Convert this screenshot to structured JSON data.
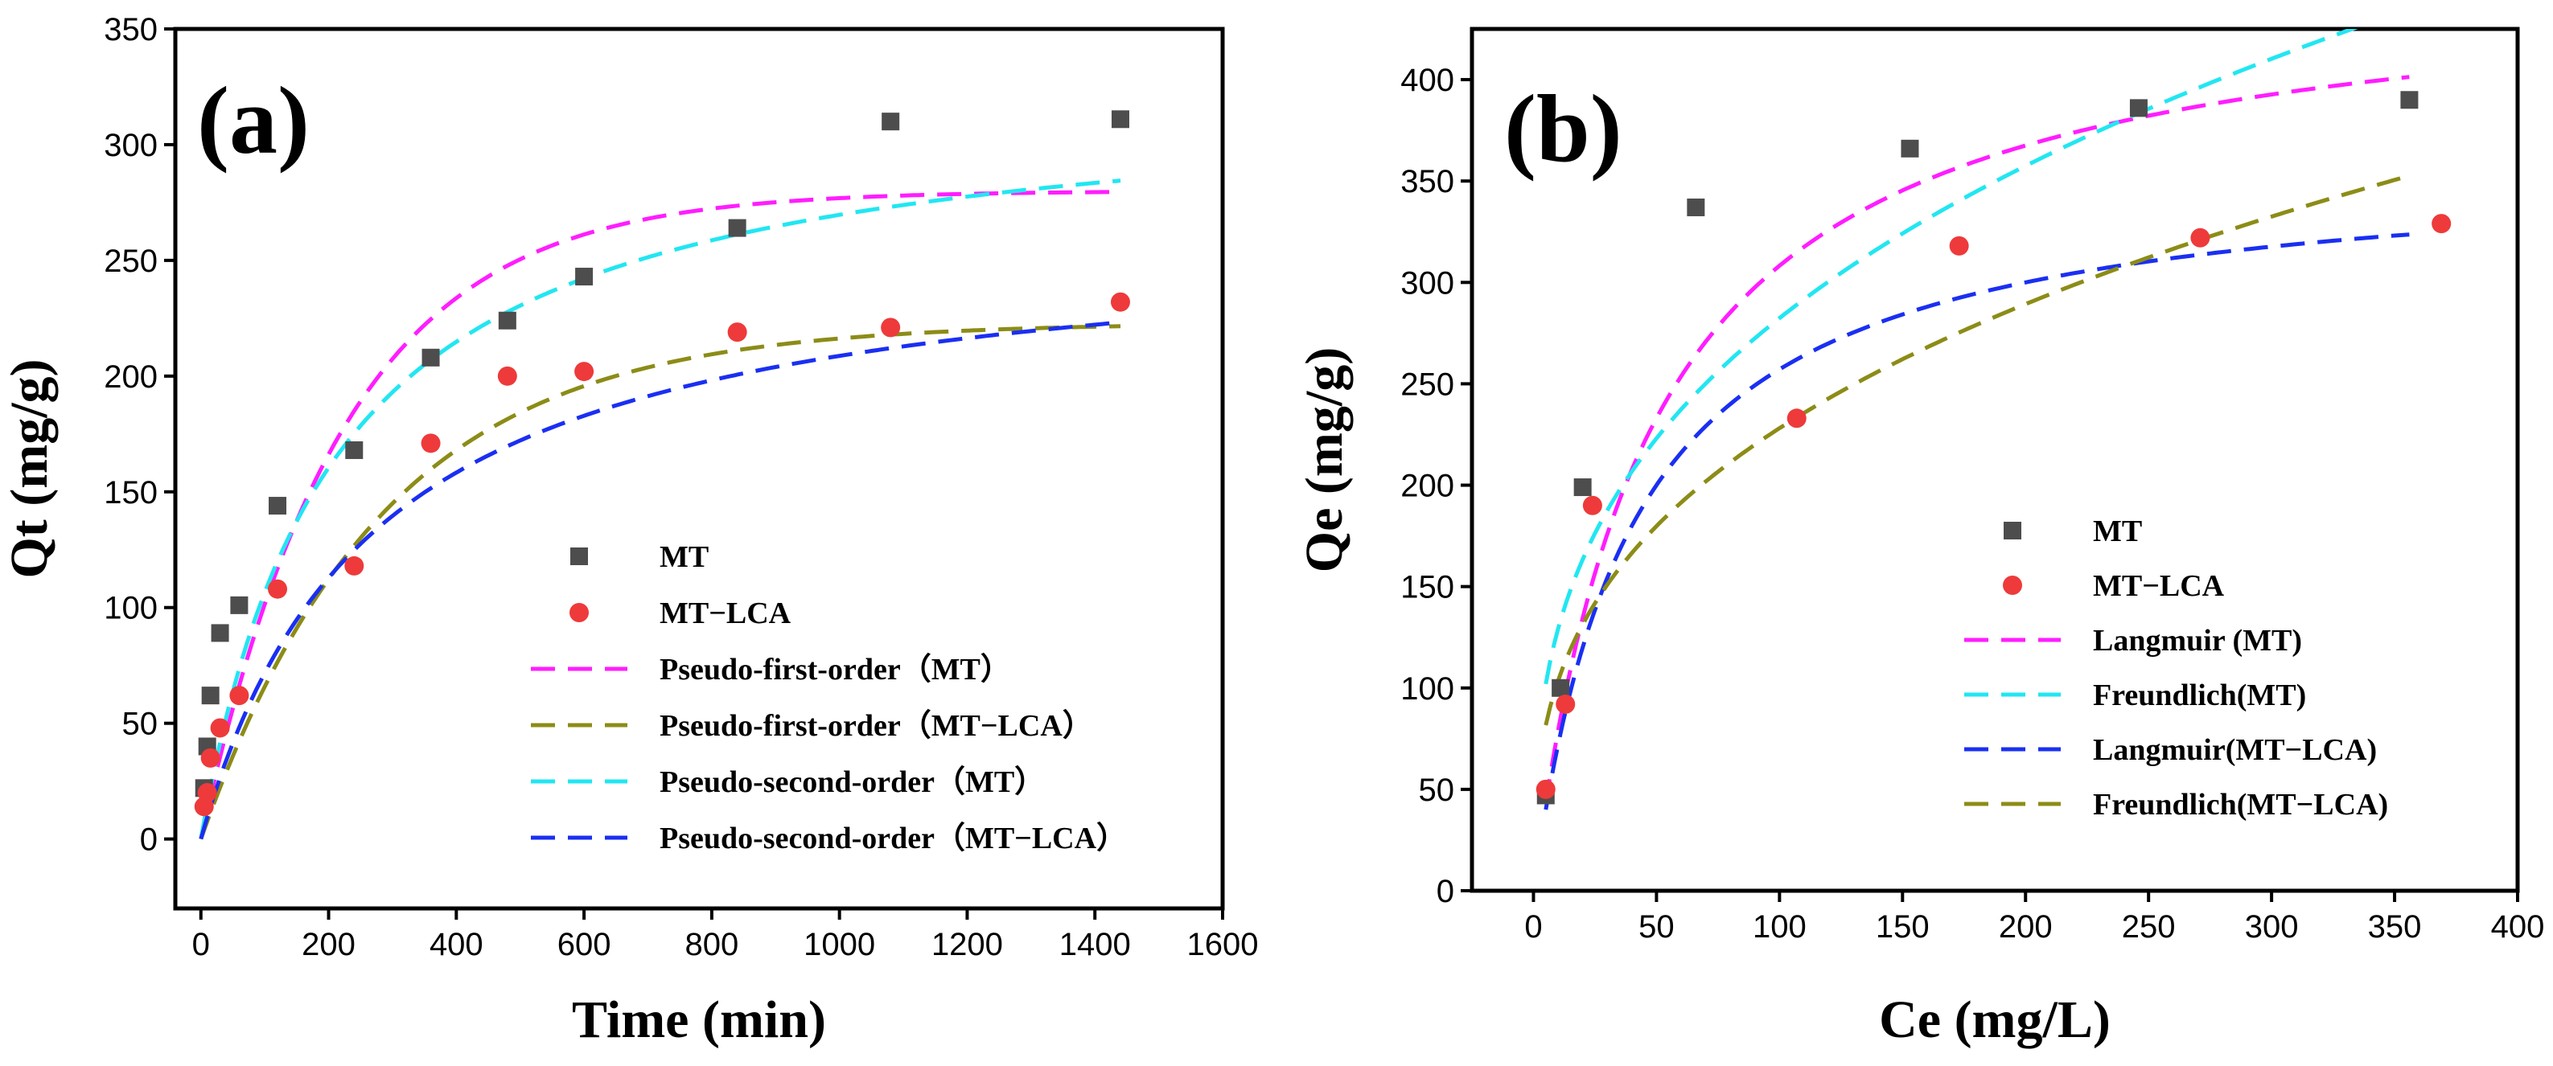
{
  "chart_data": [
    {
      "type": "scatter",
      "panel_label": "(a)",
      "xlabel": "Time (min)",
      "ylabel": "Qt (mg/g)",
      "xlim": [
        -40,
        1600
      ],
      "ylim": [
        -30,
        350
      ],
      "xticks": [
        0,
        200,
        400,
        600,
        800,
        1000,
        1200,
        1400,
        1600
      ],
      "yticks": [
        0,
        50,
        100,
        150,
        200,
        250,
        300,
        350
      ],
      "legend_position": "center-right",
      "series": [
        {
          "name": "MT",
          "kind": "marker",
          "marker": "square",
          "color": "#4d4d4d",
          "x": [
            5,
            10,
            15,
            30,
            60,
            120,
            240,
            360,
            480,
            600,
            840,
            1080,
            1440
          ],
          "y": [
            22,
            40,
            62,
            89,
            101,
            144,
            168,
            208,
            224,
            243,
            264,
            310,
            311
          ]
        },
        {
          "name": "MT−LCA",
          "kind": "marker",
          "marker": "circle",
          "color": "#ee3a3a",
          "x": [
            5,
            10,
            15,
            30,
            60,
            120,
            240,
            360,
            480,
            600,
            840,
            1080,
            1440
          ],
          "y": [
            14,
            20,
            35,
            48,
            62,
            108,
            118,
            171,
            200,
            202,
            219,
            221,
            232
          ]
        },
        {
          "name": "Pseudo-first-order（MT）",
          "kind": "line",
          "color": "#ff1dff",
          "model": "pfo",
          "params": {
            "qe": 280,
            "k": 0.0045
          },
          "xrange": [
            0,
            1440
          ]
        },
        {
          "name": "Pseudo-first-order（MT−LCA）",
          "kind": "line",
          "color": "#8c8c17",
          "model": "pfo",
          "params": {
            "qe": 223,
            "k": 0.0035
          },
          "xrange": [
            0,
            1440
          ]
        },
        {
          "name": "Pseudo-second-order（MT）",
          "kind": "line",
          "color": "#22e6f2",
          "model": "pso",
          "params": {
            "qe": 325,
            "k": 1.5e-05
          },
          "xrange": [
            0,
            1440
          ]
        },
        {
          "name": "Pseudo-second-order（MT−LCA）",
          "kind": "line",
          "color": "#1a2ff2",
          "model": "pso",
          "params": {
            "qe": 265,
            "k": 1.4e-05
          },
          "xrange": [
            0,
            1440
          ]
        }
      ]
    },
    {
      "type": "scatter",
      "panel_label": "(b)",
      "xlabel": "Ce (mg/L)",
      "ylabel": "Qe (mg/g)",
      "xlim": [
        -25,
        400
      ],
      "ylim": [
        0,
        425
      ],
      "xticks": [
        0,
        50,
        100,
        150,
        200,
        250,
        300,
        350,
        400
      ],
      "yticks": [
        0,
        50,
        100,
        150,
        200,
        250,
        300,
        350,
        400
      ],
      "legend_position": "lower-right",
      "series": [
        {
          "name": "MT",
          "kind": "marker",
          "marker": "square",
          "color": "#4d4d4d",
          "x": [
            5,
            11,
            20,
            66,
            153,
            246,
            356
          ],
          "y": [
            47,
            100,
            199,
            337,
            366,
            386,
            390
          ]
        },
        {
          "name": "MT−LCA",
          "kind": "marker",
          "marker": "circle",
          "color": "#ee3a3a",
          "x": [
            5,
            13,
            24,
            107,
            173,
            271,
            369
          ],
          "y": [
            50,
            92,
            190,
            233,
            318,
            322,
            329
          ]
        },
        {
          "name": "Langmuir (MT)",
          "kind": "line",
          "color": "#ff1dff",
          "model": "langmuir",
          "params": {
            "qm": 455,
            "K": 0.021
          },
          "xrange": [
            5,
            356
          ]
        },
        {
          "name": "Freundlich(MT)",
          "kind": "line",
          "color": "#22e6f2",
          "model": "freundlich",
          "params": {
            "K": 59,
            "n": 0.34
          },
          "xrange": [
            5,
            340
          ]
        },
        {
          "name": "Langmuir(MT−LCA)",
          "kind": "line",
          "color": "#1a2ff2",
          "model": "langmuir",
          "params": {
            "qm": 360,
            "K": 0.025
          },
          "xrange": [
            5,
            356
          ]
        },
        {
          "name": "Freundlich(MT−LCA)",
          "kind": "line",
          "color": "#8c8c17",
          "model": "freundlich",
          "params": {
            "K": 47,
            "n": 0.343
          },
          "xrange": [
            5,
            356
          ]
        }
      ]
    }
  ]
}
